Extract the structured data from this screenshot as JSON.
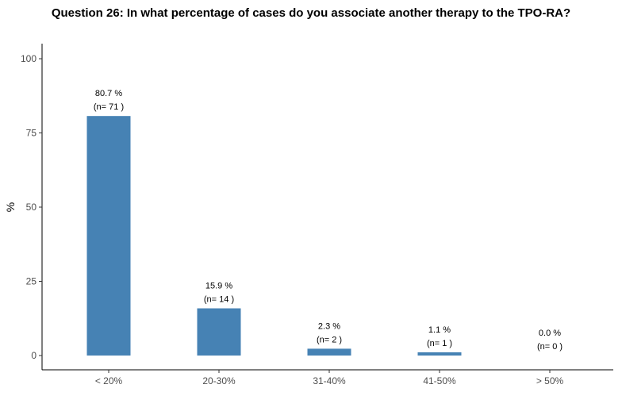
{
  "chart_data": {
    "type": "bar",
    "title": "Question 26: In what percentage of cases do you associate another therapy to the TPO-RA?",
    "xlabel": "",
    "ylabel": "%",
    "categories": [
      "< 20%",
      "20-30%",
      "31-40%",
      "41-50%",
      "> 50%"
    ],
    "values": [
      80.7,
      15.9,
      2.3,
      1.1,
      0.0
    ],
    "value_labels": [
      "80.7 %",
      "15.9 %",
      "2.3 %",
      "1.1 %",
      "0.0 %"
    ],
    "count_labels": [
      "(n= 71 )",
      "(n= 14 )",
      "(n= 2 )",
      "(n= 1 )",
      "(n= 0 )"
    ],
    "ylim": [
      0,
      100
    ],
    "yticks": [
      0,
      25,
      50,
      75,
      100
    ],
    "ytick_labels": [
      "0",
      "25",
      "50",
      "75",
      "100"
    ],
    "grid": false,
    "bar_color": "#4682b4"
  }
}
